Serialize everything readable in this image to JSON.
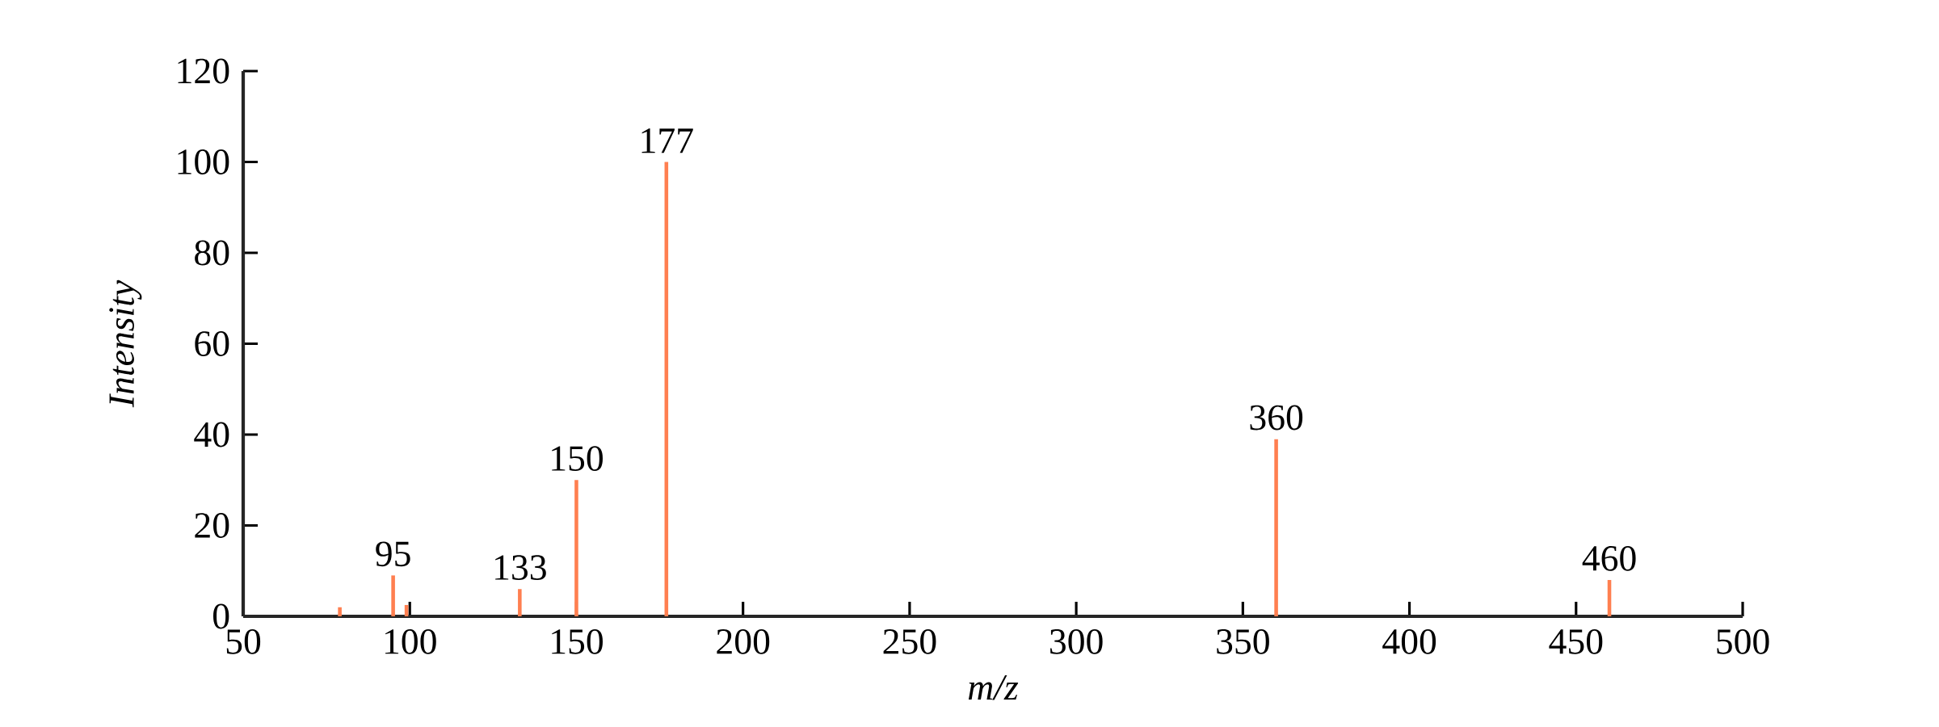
{
  "chart_data": {
    "type": "bar",
    "xlabel": "m/z",
    "ylabel": "Intensity",
    "x": [
      79,
      95,
      99,
      133,
      150,
      177,
      360,
      460
    ],
    "values": [
      2,
      9,
      2.5,
      6,
      30,
      100,
      39,
      8
    ],
    "color": "#ff7f50",
    "xlim": [
      50,
      500
    ],
    "xticks": [
      50,
      100,
      150,
      200,
      250,
      300,
      350,
      400,
      450,
      500
    ],
    "ylim": [
      0,
      120
    ],
    "yticks": [
      0,
      20,
      40,
      60,
      80,
      100,
      120
    ],
    "annotations": [
      {
        "text": "95",
        "x": 95,
        "y": 9
      },
      {
        "text": "133",
        "x": 133,
        "y": 6
      },
      {
        "text": "150",
        "x": 150,
        "y": 30
      },
      {
        "text": "177",
        "x": 177,
        "y": 100
      },
      {
        "text": "360",
        "x": 360,
        "y": 39
      },
      {
        "text": "460",
        "x": 460,
        "y": 8
      }
    ]
  }
}
